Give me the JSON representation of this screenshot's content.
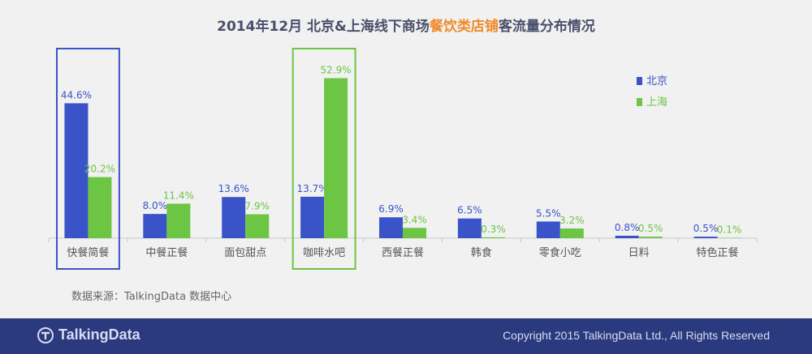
{
  "title": {
    "part1": "2014年12月  北京&上海线下商场",
    "highlight": "餐饮类店铺",
    "part2": "客流量分布情况"
  },
  "source": "数据来源：TalkingData 数据中心",
  "footer": {
    "brand": "TalkingData",
    "copyright": "Copyright 2015 TalkingData Ltd., All Rights Reserved"
  },
  "colors": {
    "beijing": "#3b53c8",
    "shanghai": "#6cc543",
    "highlight_title": "#f08a2a",
    "box_blue": "#3b53c8",
    "box_green": "#6cc543"
  },
  "chart_data": {
    "type": "bar",
    "categories": [
      "快餐简餐",
      "中餐正餐",
      "面包甜点",
      "咖啡水吧",
      "西餐正餐",
      "韩食",
      "零食小吃",
      "日料",
      "特色正餐"
    ],
    "series": [
      {
        "name": "北京",
        "values": [
          44.6,
          8.0,
          13.6,
          13.7,
          6.9,
          6.5,
          5.5,
          0.8,
          0.5
        ],
        "labels": [
          "44.6%",
          "8.0%",
          "13.6%",
          "13.7%",
          "6.9%",
          "6.5%",
          "5.5%",
          "0.8%",
          "0.5%"
        ]
      },
      {
        "name": "上海",
        "values": [
          20.2,
          11.4,
          7.9,
          52.9,
          3.4,
          0.3,
          3.2,
          0.5,
          0.1
        ],
        "labels": [
          "20.2%",
          "11.4%",
          "7.9%",
          "52.9%",
          "3.4%",
          "0.3%",
          "3.2%",
          "0.5%",
          "0.1%"
        ]
      }
    ],
    "ylim": [
      0,
      60
    ],
    "highlighted_categories": [
      "快餐简餐",
      "咖啡水吧"
    ],
    "legend_position": "top-right"
  }
}
